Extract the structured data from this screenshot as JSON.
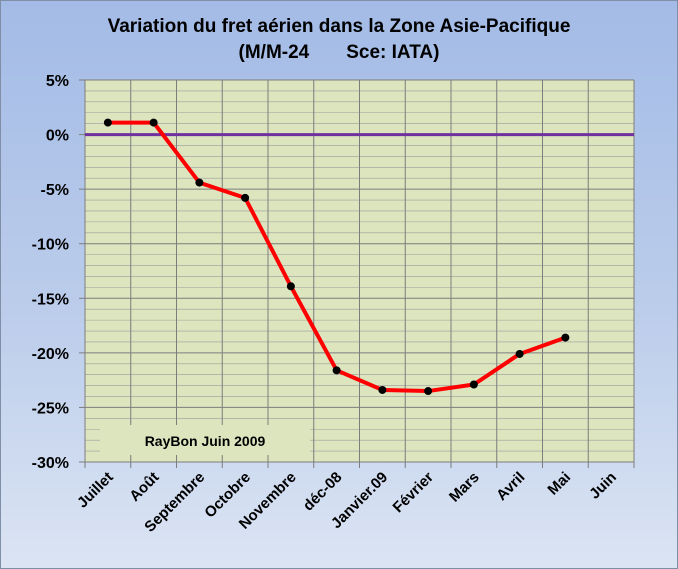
{
  "chart_data": {
    "type": "line",
    "title": "Variation du fret aérien dans la Zone Asie-Pacifique",
    "subtitle": "(M/M-24       Sce: IATA)",
    "categories": [
      "Juillet",
      "Août",
      "Septembre",
      "Octobre",
      "Novembre",
      "déc-08",
      "Janvier.09",
      "Février",
      "Mars",
      "Avril",
      "Mai",
      "Juin"
    ],
    "series": [
      {
        "values": [
          1.1,
          1.1,
          -4.4,
          -5.8,
          -13.9,
          -21.6,
          -23.4,
          -23.5,
          -22.9,
          -20.1,
          -18.6,
          null
        ],
        "color": "#ff0000",
        "marker_color": "#000000"
      }
    ],
    "reference_line": {
      "value": 0,
      "color": "#7030a0"
    },
    "ylim": [
      -30,
      5
    ],
    "y_ticks": [
      5,
      0,
      -5,
      -10,
      -15,
      -20,
      -25,
      -30
    ],
    "y_tick_labels": [
      "5%",
      "0%",
      "-5%",
      "-10%",
      "-15%",
      "-20%",
      "-25%",
      "-30%"
    ],
    "y_minor_step": 1,
    "grid": true,
    "plot_background": "#dde5bf",
    "annotation": "RayBon Juin 2009",
    "xlabel": "",
    "ylabel": ""
  }
}
